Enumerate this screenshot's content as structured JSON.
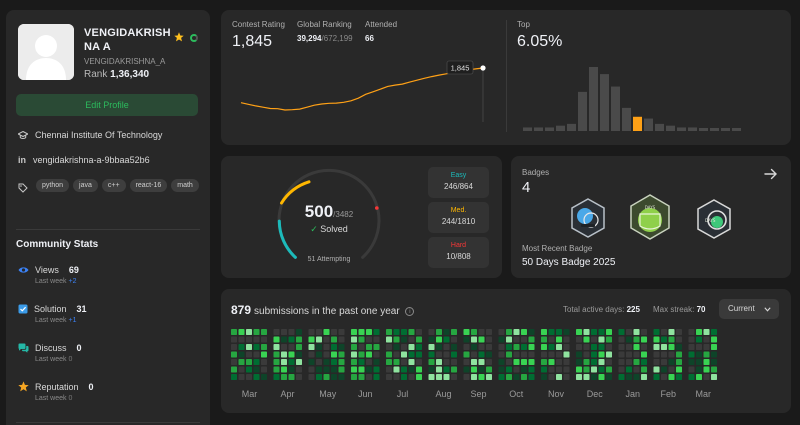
{
  "profile": {
    "name_line1": "VENGIDAKRISH",
    "name_line2": "NA A",
    "handle": "VENGIDAKRISHNA_A",
    "rank_label": "Rank",
    "rank_value": "1,36,340",
    "edit_label": "Edit Profile",
    "institute": "Chennai Institute Of Technology",
    "linkedin": "vengidakrishna-a-9bbaa52b6",
    "tags": [
      "python",
      "java",
      "c++",
      "react-16",
      "math"
    ]
  },
  "community": {
    "title": "Community Stats",
    "items": [
      {
        "label": "Views",
        "value": "69",
        "week_label": "Last week",
        "change": "+2",
        "icon": "eye-icon",
        "color": "#3b82f6"
      },
      {
        "label": "Solution",
        "value": "31",
        "week_label": "Last week",
        "change": "+1",
        "icon": "checkbox-icon",
        "color": "#3b9be8"
      },
      {
        "label": "Discuss",
        "value": "0",
        "week_label": "Last week",
        "change": "0",
        "icon": "discuss-icon",
        "color": "#25b8a7"
      },
      {
        "label": "Reputation",
        "value": "0",
        "week_label": "Last week",
        "change": "0",
        "icon": "star-icon",
        "color": "#f5a623"
      }
    ]
  },
  "contest": {
    "rating_label": "Contest Rating",
    "rating_value": "1,845",
    "ranking_label": "Global Ranking",
    "ranking_value": "39,294",
    "ranking_total": "/672,199",
    "attended_label": "Attended",
    "attended_value": "66",
    "tooltip": "1,845",
    "top_label": "Top",
    "top_value": "6.05%",
    "rating_series": [
      1575,
      1562,
      1550,
      1540,
      1530,
      1528,
      1518,
      1520,
      1525,
      1540,
      1555,
      1565,
      1570,
      1572,
      1578,
      1590,
      1610,
      1640,
      1660,
      1680,
      1702,
      1712,
      1720,
      1735,
      1750,
      1765,
      1778,
      1790,
      1800,
      1810,
      1822,
      1830,
      1838,
      1845
    ],
    "histogram": [
      2,
      2,
      2,
      3,
      4,
      22,
      36,
      32,
      25,
      13,
      8,
      7,
      4,
      3,
      2,
      2,
      1,
      1,
      1,
      1
    ],
    "histogram_highlight": 10
  },
  "problems": {
    "solved": "500",
    "total": "/3482",
    "solved_label": "Solved",
    "attempting": "51 Attempting",
    "easy_label": "Easy",
    "easy_value": "246/864",
    "easy_color": "#1cbaba",
    "medium_label": "Med.",
    "medium_value": "244/1810",
    "medium_color": "#ffb700",
    "hard_label": "Hard",
    "hard_value": "10/808",
    "hard_color": "#f63737"
  },
  "badges": {
    "label": "Badges",
    "count": "4",
    "recent_label": "Most Recent Badge",
    "recent_name": "50 Days Badge 2025",
    "badge_icons": [
      "badge-knowledge-icon",
      "badge-days-icon",
      "badge-50-days-icon"
    ]
  },
  "submissions": {
    "count": "879",
    "text": "submissions in the past one year",
    "active_label": "Total active days:",
    "active_value": "225",
    "streak_label": "Max streak:",
    "streak_value": "70",
    "dropdown": "Current",
    "months": [
      "Mar",
      "Apr",
      "May",
      "Jun",
      "Jul",
      "Aug",
      "Sep",
      "Oct",
      "Nov",
      "Dec",
      "Jan",
      "Feb",
      "Mar"
    ]
  }
}
